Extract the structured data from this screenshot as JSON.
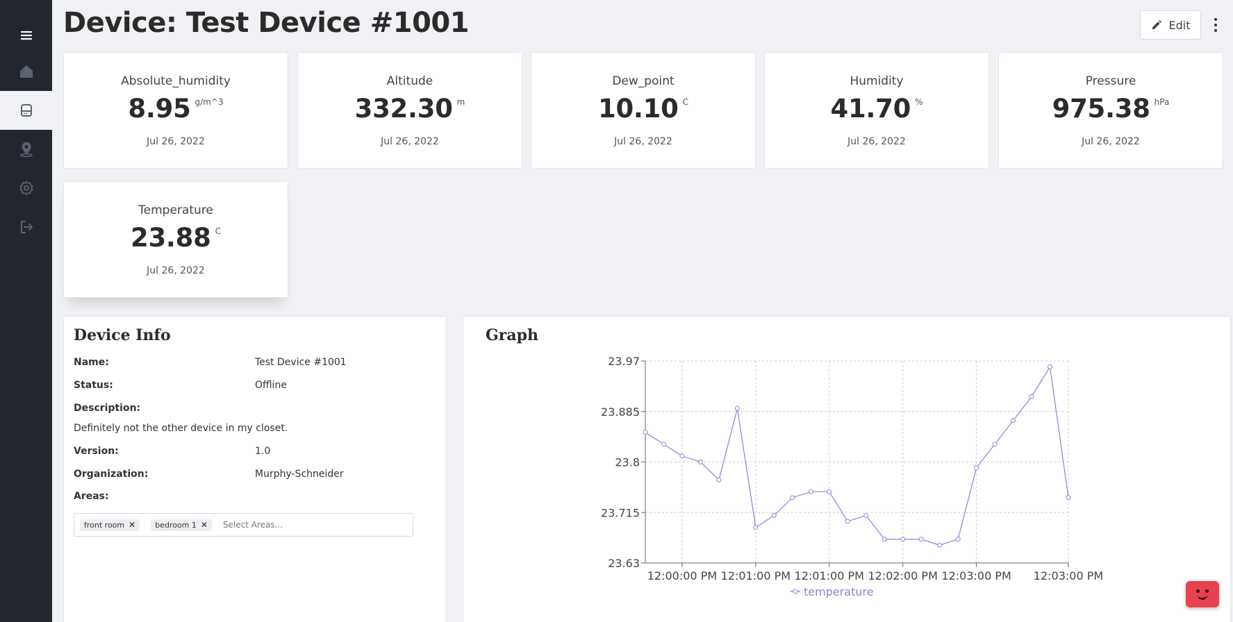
{
  "page": {
    "title": "Device: Test Device #1001",
    "edit_label": "Edit"
  },
  "sidebar": {
    "items": [
      {
        "icon": "menu-icon"
      },
      {
        "icon": "home-icon"
      },
      {
        "icon": "device-icon",
        "active": true
      },
      {
        "icon": "location-icon"
      },
      {
        "icon": "settings-icon"
      },
      {
        "icon": "logout-icon"
      }
    ]
  },
  "sensors": [
    {
      "name": "Absolute_humidity",
      "value": "8.95",
      "unit": "g/m^3",
      "date": "Jul 26, 2022"
    },
    {
      "name": "Altitude",
      "value": "332.30",
      "unit": "m",
      "date": "Jul 26, 2022"
    },
    {
      "name": "Dew_point",
      "value": "10.10",
      "unit": "C",
      "date": "Jul 26, 2022"
    },
    {
      "name": "Humidity",
      "value": "41.70",
      "unit": "%",
      "date": "Jul 26, 2022"
    },
    {
      "name": "Pressure",
      "value": "975.38",
      "unit": "hPa",
      "date": "Jul 26, 2022"
    },
    {
      "name": "Temperature",
      "value": "23.88",
      "unit": "C",
      "date": "Jul 26, 2022"
    }
  ],
  "device_info": {
    "title": "Device Info",
    "name_label": "Name:",
    "name_value": "Test Device #1001",
    "status_label": "Status:",
    "status_value": "Offline",
    "description_label": "Description:",
    "description_value": "Definitely not the other device in my closet.",
    "version_label": "Version:",
    "version_value": "1.0",
    "organization_label": "Organization:",
    "organization_value": "Murphy-Schneider",
    "areas_label": "Areas:",
    "areas": [
      "front room",
      "bedroom 1"
    ],
    "areas_placeholder": "Select Areas..."
  },
  "graph": {
    "title": "Graph"
  },
  "colors": {
    "sidebar": "#23272d",
    "background": "#f0f1f5",
    "series": "#8884d8",
    "bot": "#e8424f"
  },
  "chart_data": {
    "type": "line",
    "x_tick_labels": [
      "12:00:00 PM",
      "12:01:00 PM",
      "12:01:00 PM",
      "12:02:00 PM",
      "12:03:00 PM",
      "12:03:00 PM"
    ],
    "y_tick_labels": [
      "23.63",
      "23.715",
      "23.8",
      "23.885",
      "23.97"
    ],
    "ylim": [
      23.63,
      23.97
    ],
    "grid": true,
    "legend_position": "bottom",
    "series": [
      {
        "name": "temperature",
        "values": [
          23.85,
          23.83,
          23.81,
          23.8,
          23.77,
          23.89,
          23.69,
          23.71,
          23.74,
          23.75,
          23.75,
          23.7,
          23.71,
          23.67,
          23.67,
          23.67,
          23.66,
          23.67,
          23.79,
          23.83,
          23.87,
          23.91,
          23.96,
          23.74
        ]
      }
    ]
  }
}
